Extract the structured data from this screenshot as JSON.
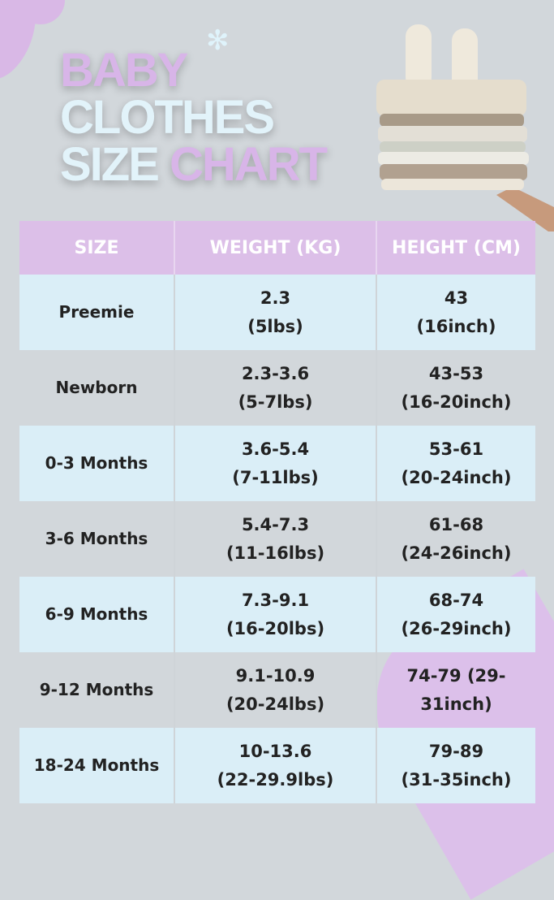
{
  "title": {
    "line1": "BABY",
    "line2": "CLOTHES",
    "line3a": "SIZE",
    "line3b": "CHART"
  },
  "colors": {
    "background": "#d2d7db",
    "pink": "#dcbfe8",
    "light_blue": "#daeef7"
  },
  "table": {
    "headers": [
      "SIZE",
      "WEIGHT (KG)",
      "HEIGHT (CM)"
    ],
    "rows": [
      {
        "size": "Preemie",
        "weight": "2.3",
        "weight_lbs": "(5lbs)",
        "height": "43",
        "height_in": "(16inch)"
      },
      {
        "size": "Newborn",
        "weight": "2.3-3.6",
        "weight_lbs": "(5-7lbs)",
        "height": "43-53",
        "height_in": "(16-20inch)"
      },
      {
        "size": "0-3 Months",
        "weight": "3.6-5.4",
        "weight_lbs": "(7-11lbs)",
        "height": "53-61",
        "height_in": "(20-24inch)"
      },
      {
        "size": "3-6 Months",
        "weight": "5.4-7.3",
        "weight_lbs": "(11-16lbs)",
        "height": "61-68",
        "height_in": "(24-26inch)"
      },
      {
        "size": "6-9 Months",
        "weight": "7.3-9.1",
        "weight_lbs": "(16-20lbs)",
        "height": "68-74",
        "height_in": "(26-29inch)"
      },
      {
        "size": "9-12 Months",
        "weight": "9.1-10.9",
        "weight_lbs": "(20-24lbs)",
        "height": "74-79 (29-",
        "height_in": "31inch)"
      },
      {
        "size": "18-24 Months",
        "weight": "10-13.6",
        "weight_lbs": "(22-29.9lbs)",
        "height": "79-89",
        "height_in": "(31-35inch)"
      }
    ]
  }
}
